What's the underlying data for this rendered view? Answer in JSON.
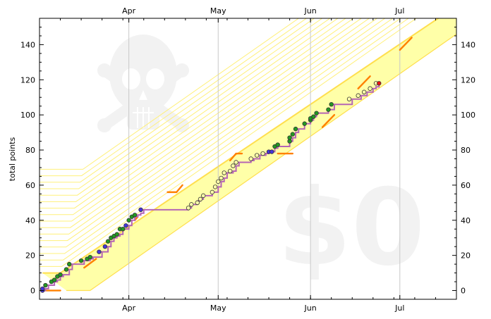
{
  "chart_data": {
    "type": "scatter",
    "title": "",
    "xlabel": "",
    "ylabel": "total points",
    "ylim": [
      -5,
      155
    ],
    "xlim": [
      "2024-03-02",
      "2024-07-20"
    ],
    "yticks": [
      0,
      20,
      40,
      60,
      80,
      100,
      120,
      140
    ],
    "xticks": [
      {
        "date": "2024-04-01",
        "label": "Apr"
      },
      {
        "date": "2024-05-01",
        "label": "May"
      },
      {
        "date": "2024-06-01",
        "label": "Jun"
      },
      {
        "date": "2024-07-01",
        "label": "Jul"
      }
    ],
    "watermark_text": "$0",
    "watermark_icon": "skull-crossbones-icon",
    "colors": {
      "step_line": "#b565b5",
      "band_fill": "#ffffa8",
      "band_edge": "#ffdf4f",
      "guide_lines": "#fff07a",
      "segments": "#ff8000",
      "watermark": "#f2f2f2",
      "point_green": "#229922",
      "point_blue": "#4433dd",
      "point_yellow": "#ffffaa",
      "point_red": "#ee1111"
    },
    "band": {
      "lower": [
        [
          "2024-03-11",
          0
        ],
        [
          "2024-03-19",
          0
        ],
        [
          "2024-07-20",
          146
        ]
      ],
      "upper": [
        [
          "2024-03-03",
          10
        ],
        [
          "2024-03-09",
          10
        ],
        [
          "2024-07-20",
          162
        ]
      ]
    },
    "step_series": [
      [
        "2024-03-03",
        0
      ],
      [
        "2024-03-04",
        1
      ],
      [
        "2024-03-05",
        3
      ],
      [
        "2024-03-07",
        5
      ],
      [
        "2024-03-08",
        6
      ],
      [
        "2024-03-09",
        8
      ],
      [
        "2024-03-10",
        9
      ],
      [
        "2024-03-12",
        12
      ],
      [
        "2024-03-13",
        15
      ],
      [
        "2024-03-17",
        15
      ],
      [
        "2024-03-17",
        17
      ],
      [
        "2024-03-19",
        18
      ],
      [
        "2024-03-20",
        19
      ],
      [
        "2024-03-23",
        22
      ],
      [
        "2024-03-25",
        25
      ],
      [
        "2024-03-26",
        28
      ],
      [
        "2024-03-27",
        30
      ],
      [
        "2024-03-28",
        31
      ],
      [
        "2024-03-29",
        32
      ],
      [
        "2024-03-30",
        35
      ],
      [
        "2024-03-31",
        35
      ],
      [
        "2024-04-01",
        37
      ],
      [
        "2024-04-02",
        40
      ],
      [
        "2024-04-03",
        42
      ],
      [
        "2024-04-04",
        43
      ],
      [
        "2024-04-05",
        44
      ],
      [
        "2024-04-06",
        46
      ],
      [
        "2024-04-21",
        46
      ],
      [
        "2024-04-21",
        47
      ],
      [
        "2024-04-22",
        49
      ],
      [
        "2024-04-24",
        51
      ],
      [
        "2024-04-25",
        52
      ],
      [
        "2024-04-26",
        54
      ],
      [
        "2024-04-29",
        54
      ],
      [
        "2024-04-29",
        56
      ],
      [
        "2024-04-30",
        56
      ],
      [
        "2024-05-01",
        59
      ],
      [
        "2024-05-02",
        62
      ],
      [
        "2024-05-03",
        64
      ],
      [
        "2024-05-04",
        67
      ],
      [
        "2024-05-06",
        68
      ],
      [
        "2024-05-07",
        71
      ],
      [
        "2024-05-08",
        73
      ],
      [
        "2024-05-12",
        74
      ],
      [
        "2024-05-13",
        75
      ],
      [
        "2024-05-15",
        77
      ],
      [
        "2024-05-17",
        78
      ],
      [
        "2024-05-18",
        79
      ],
      [
        "2024-05-19",
        79
      ],
      [
        "2024-05-20",
        81
      ],
      [
        "2024-05-21",
        82
      ],
      [
        "2024-05-23",
        82
      ],
      [
        "2024-05-25",
        85
      ],
      [
        "2024-05-26",
        87
      ],
      [
        "2024-05-27",
        90
      ],
      [
        "2024-05-28",
        92
      ],
      [
        "2024-05-30",
        95
      ],
      [
        "2024-06-01",
        95
      ],
      [
        "2024-06-01",
        97
      ],
      [
        "2024-06-02",
        99
      ],
      [
        "2024-06-03",
        101
      ],
      [
        "2024-06-07",
        103
      ],
      [
        "2024-06-08",
        103
      ],
      [
        "2024-06-09",
        106
      ],
      [
        "2024-06-15",
        106
      ],
      [
        "2024-06-15",
        109
      ],
      [
        "2024-06-18",
        111
      ],
      [
        "2024-06-20",
        113
      ],
      [
        "2024-06-22",
        115
      ],
      [
        "2024-06-23",
        116
      ],
      [
        "2024-06-24",
        118
      ]
    ],
    "points": [
      {
        "date": "2024-03-03",
        "value": 0,
        "color": "blue"
      },
      {
        "date": "2024-03-03",
        "value": 1,
        "color": "blue"
      },
      {
        "date": "2024-03-04",
        "value": 3,
        "color": "green"
      },
      {
        "date": "2024-03-06",
        "value": 5,
        "color": "green"
      },
      {
        "date": "2024-03-07",
        "value": 6,
        "color": "green"
      },
      {
        "date": "2024-03-08",
        "value": 8,
        "color": "green"
      },
      {
        "date": "2024-03-09",
        "value": 9,
        "color": "green"
      },
      {
        "date": "2024-03-11",
        "value": 12,
        "color": "green"
      },
      {
        "date": "2024-03-12",
        "value": 15,
        "color": "green"
      },
      {
        "date": "2024-03-16",
        "value": 17,
        "color": "green"
      },
      {
        "date": "2024-03-18",
        "value": 18,
        "color": "green"
      },
      {
        "date": "2024-03-19",
        "value": 19,
        "color": "green"
      },
      {
        "date": "2024-03-22",
        "value": 22,
        "color": "blue"
      },
      {
        "date": "2024-03-24",
        "value": 25,
        "color": "blue"
      },
      {
        "date": "2024-03-25",
        "value": 28,
        "color": "green"
      },
      {
        "date": "2024-03-26",
        "value": 30,
        "color": "green"
      },
      {
        "date": "2024-03-27",
        "value": 31,
        "color": "green"
      },
      {
        "date": "2024-03-28",
        "value": 32,
        "color": "green"
      },
      {
        "date": "2024-03-29",
        "value": 35,
        "color": "green"
      },
      {
        "date": "2024-03-30",
        "value": 35,
        "color": "green"
      },
      {
        "date": "2024-03-31",
        "value": 37,
        "color": "blue"
      },
      {
        "date": "2024-04-01",
        "value": 40,
        "color": "green"
      },
      {
        "date": "2024-04-02",
        "value": 42,
        "color": "green"
      },
      {
        "date": "2024-04-03",
        "value": 43,
        "color": "green"
      },
      {
        "date": "2024-04-05",
        "value": 46,
        "color": "blue"
      },
      {
        "date": "2024-04-21",
        "value": 47,
        "color": "yellow"
      },
      {
        "date": "2024-04-22",
        "value": 49,
        "color": "yellow"
      },
      {
        "date": "2024-04-24",
        "value": 50,
        "color": "yellow"
      },
      {
        "date": "2024-04-25",
        "value": 52,
        "color": "yellow"
      },
      {
        "date": "2024-04-26",
        "value": 54,
        "color": "yellow"
      },
      {
        "date": "2024-04-29",
        "value": 56,
        "color": "yellow"
      },
      {
        "date": "2024-04-30",
        "value": 59,
        "color": "yellow"
      },
      {
        "date": "2024-05-01",
        "value": 62,
        "color": "yellow"
      },
      {
        "date": "2024-05-02",
        "value": 64,
        "color": "yellow"
      },
      {
        "date": "2024-05-03",
        "value": 67,
        "color": "yellow"
      },
      {
        "date": "2024-05-05",
        "value": 68,
        "color": "yellow"
      },
      {
        "date": "2024-05-06",
        "value": 71,
        "color": "yellow"
      },
      {
        "date": "2024-05-07",
        "value": 73,
        "color": "yellow"
      },
      {
        "date": "2024-05-12",
        "value": 75,
        "color": "yellow"
      },
      {
        "date": "2024-05-14",
        "value": 77,
        "color": "yellow"
      },
      {
        "date": "2024-05-16",
        "value": 78,
        "color": "yellow"
      },
      {
        "date": "2024-05-18",
        "value": 79,
        "color": "blue"
      },
      {
        "date": "2024-05-19",
        "value": 79,
        "color": "blue"
      },
      {
        "date": "2024-05-20",
        "value": 82,
        "color": "green"
      },
      {
        "date": "2024-05-21",
        "value": 83,
        "color": "green"
      },
      {
        "date": "2024-05-25",
        "value": 85,
        "color": "green"
      },
      {
        "date": "2024-05-25",
        "value": 87,
        "color": "green"
      },
      {
        "date": "2024-05-26",
        "value": 89,
        "color": "green"
      },
      {
        "date": "2024-05-27",
        "value": 92,
        "color": "green"
      },
      {
        "date": "2024-05-30",
        "value": 95,
        "color": "green"
      },
      {
        "date": "2024-06-01",
        "value": 97,
        "color": "green"
      },
      {
        "date": "2024-06-01",
        "value": 98,
        "color": "green"
      },
      {
        "date": "2024-06-02",
        "value": 99,
        "color": "green"
      },
      {
        "date": "2024-06-03",
        "value": 101,
        "color": "green"
      },
      {
        "date": "2024-06-07",
        "value": 103,
        "color": "green"
      },
      {
        "date": "2024-06-08",
        "value": 106,
        "color": "green"
      },
      {
        "date": "2024-06-14",
        "value": 109,
        "color": "yellow"
      },
      {
        "date": "2024-06-17",
        "value": 111,
        "color": "yellow"
      },
      {
        "date": "2024-06-19",
        "value": 113,
        "color": "yellow"
      },
      {
        "date": "2024-06-21",
        "value": 115,
        "color": "yellow"
      },
      {
        "date": "2024-06-23",
        "value": 118,
        "color": "yellow"
      },
      {
        "date": "2024-06-24",
        "value": 118,
        "color": "red"
      }
    ],
    "orange_segments": [
      [
        [
          "2024-03-03",
          0
        ],
        [
          "2024-03-09",
          0
        ]
      ],
      [
        [
          "2024-03-17",
          13
        ],
        [
          "2024-03-21",
          18
        ]
      ],
      [
        [
          "2024-04-03",
          40
        ],
        [
          "2024-04-04",
          42
        ]
      ],
      [
        [
          "2024-04-14",
          56
        ],
        [
          "2024-04-17",
          56
        ],
        [
          "2024-04-19",
          60
        ]
      ],
      [
        [
          "2024-05-05",
          74
        ],
        [
          "2024-05-07",
          78
        ],
        [
          "2024-05-09",
          78
        ]
      ],
      [
        [
          "2024-05-21",
          78
        ],
        [
          "2024-05-26",
          78
        ]
      ],
      [
        [
          "2024-06-05",
          93
        ],
        [
          "2024-06-09",
          100
        ]
      ],
      [
        [
          "2024-06-17",
          115
        ],
        [
          "2024-06-21",
          122
        ]
      ],
      [
        [
          "2024-07-01",
          137
        ],
        [
          "2024-07-05",
          144
        ]
      ]
    ]
  }
}
